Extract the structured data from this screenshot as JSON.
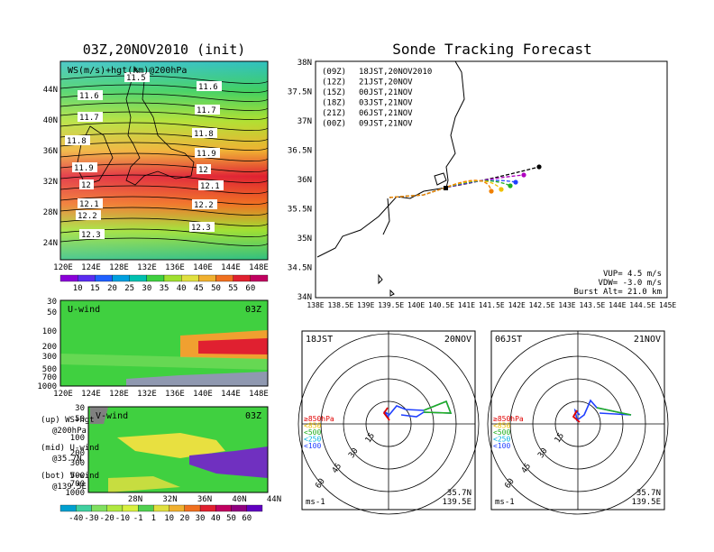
{
  "left": {
    "title": "03Z,20NOV2010 (init)",
    "map": {
      "caption": "WS(m/s)+hgt(km)@200hPa",
      "lat_labels": [
        "44N",
        "40N",
        "36N",
        "32N",
        "28N",
        "24N"
      ],
      "lon_labels": [
        "120E",
        "124E",
        "128E",
        "132E",
        "136E",
        "140E",
        "144E",
        "148E"
      ],
      "contours": [
        "11.5",
        "11.6",
        "11.6",
        "11.7",
        "11.7",
        "11.8",
        "11.8",
        "11.9",
        "11.9",
        "12",
        "12",
        "12.1",
        "12.1",
        "12.2",
        "12.2",
        "12.3",
        "12.3"
      ],
      "colorbar": {
        "labels": [
          "10",
          "15",
          "20",
          "25",
          "30",
          "35",
          "40",
          "45",
          "50",
          "55",
          "60"
        ],
        "colors": [
          "#8a00d8",
          "#5a2cf0",
          "#2060ff",
          "#00a0e0",
          "#00c0b0",
          "#40d040",
          "#a0e030",
          "#e0e040",
          "#f0b030",
          "#f07020",
          "#e02030",
          "#c00060"
        ]
      }
    },
    "uwind": {
      "title": "U-wind",
      "time": "03Z",
      "p_labels": [
        "30",
        "50",
        "100",
        "200",
        "300",
        "500",
        "700",
        "1000"
      ],
      "lon_labels": [
        "120E",
        "124E",
        "128E",
        "132E",
        "136E",
        "140E",
        "144E",
        "148E"
      ]
    },
    "vwind": {
      "title": "V-wind",
      "time": "03Z",
      "p_labels": [
        "30",
        "50",
        "100",
        "200",
        "300",
        "500",
        "700",
        "1000"
      ],
      "lat_labels": [
        "28N",
        "32N",
        "36N",
        "40N",
        "44N"
      ],
      "colorbar": {
        "labels": [
          "-40",
          "-30",
          "-20",
          "-10",
          "-1",
          "1",
          "10",
          "20",
          "30",
          "40",
          "50",
          "60"
        ],
        "colors": [
          "#00a0d0",
          "#40d0a0",
          "#80e060",
          "#b0e840",
          "#d8f040",
          "#50d050",
          "#e0e040",
          "#f0b030",
          "#f07020",
          "#e02030",
          "#c00060",
          "#900080",
          "#6000c0"
        ]
      }
    },
    "legend": [
      {
        "name": "(up) WS+hgt",
        "sub": "@200hPa"
      },
      {
        "name": "(mid) U-wind",
        "sub": "@35.7N"
      },
      {
        "name": "(bot) V-wind",
        "sub": "@139.5E"
      }
    ]
  },
  "right": {
    "title": "Sonde Tracking Forecast",
    "track": {
      "lat_labels": [
        "38N",
        "37.5N",
        "37N",
        "36.5N",
        "36N",
        "35.5N",
        "35N",
        "34.5N",
        "34N"
      ],
      "lon_labels": [
        "138E",
        "138.5E",
        "139E",
        "139.5E",
        "140E",
        "140.5E",
        "141E",
        "141.5E",
        "142E",
        "142.5E",
        "143E",
        "143.5E",
        "144E",
        "144.5E",
        "145E"
      ],
      "legend": [
        {
          "utc": "(09Z)",
          "jst": "18JST,20NOV2010",
          "color": "#000000"
        },
        {
          "utc": "(12Z)",
          "jst": "21JST,20NOV",
          "color": "#b000c0"
        },
        {
          "utc": "(15Z)",
          "jst": "00JST,21NOV",
          "color": "#2040ff"
        },
        {
          "utc": "(18Z)",
          "jst": "03JST,21NOV",
          "color": "#20b020"
        },
        {
          "utc": "(21Z)",
          "jst": "06JST,21NOV",
          "color": "#f0c000"
        },
        {
          "utc": "(00Z)",
          "jst": "09JST,21NOV",
          "color": "#f08000"
        }
      ],
      "params": [
        "VUP= 4.5 m/s",
        "VDW= -3.0 m/s",
        "Burst Alt= 21.0 km"
      ]
    },
    "hodographs": [
      {
        "time": "18JST",
        "date": "20NOV",
        "rings": [
          "15",
          "30",
          "45",
          "60"
        ],
        "units": "ms-1",
        "lat": "35.7N",
        "lon": "139.5E",
        "levels": [
          {
            "label": "≥850hPa",
            "color": "#e00000"
          },
          {
            "label": "<850",
            "color": "#f0c000"
          },
          {
            "label": "<500",
            "color": "#20b020"
          },
          {
            "label": "<250",
            "color": "#00b0e0"
          },
          {
            "label": "<100",
            "color": "#2040ff"
          }
        ]
      },
      {
        "time": "06JST",
        "date": "21NOV",
        "rings": [
          "15",
          "30",
          "45",
          "60"
        ],
        "units": "ms-1",
        "lat": "35.7N",
        "lon": "139.5E",
        "levels": [
          {
            "label": "≥850hPa",
            "color": "#e00000"
          },
          {
            "label": "<850",
            "color": "#f0c000"
          },
          {
            "label": "<500",
            "color": "#20b020"
          },
          {
            "label": "<250",
            "color": "#00b0e0"
          },
          {
            "label": "<100",
            "color": "#2040ff"
          }
        ]
      }
    ]
  }
}
